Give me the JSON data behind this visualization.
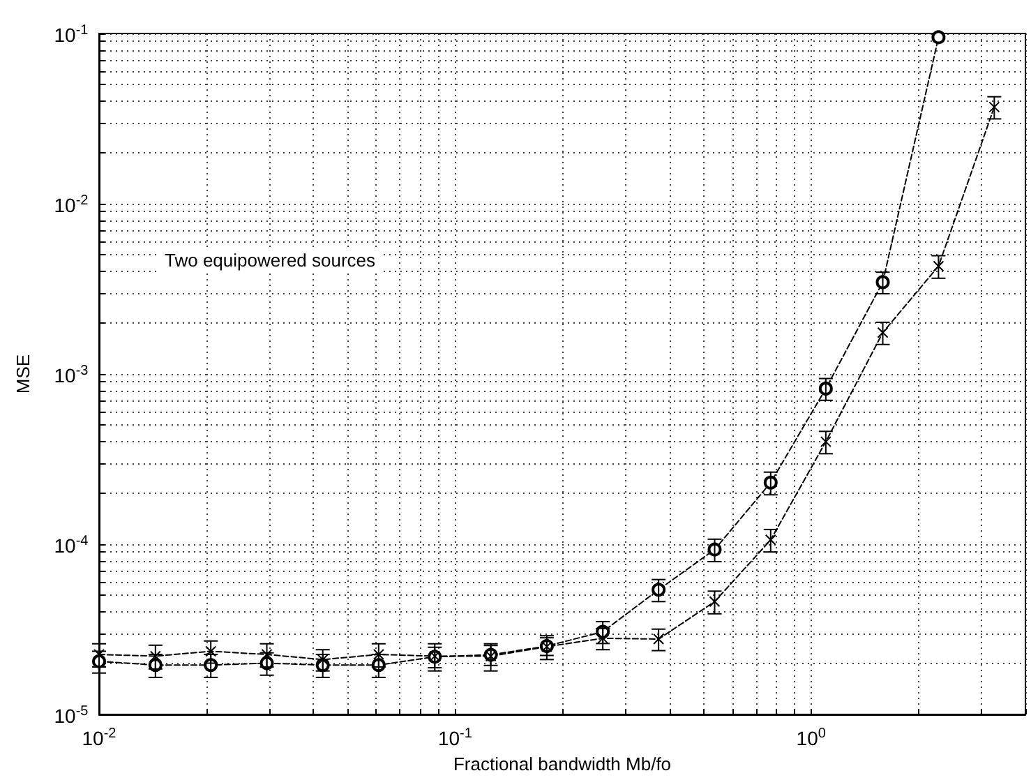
{
  "chart_data": {
    "type": "line",
    "xlabel": "Fractional bandwidth Mb/fo",
    "ylabel": "MSE",
    "annotations": [
      "Two equipowered sources"
    ],
    "log": "xy",
    "grid": true,
    "line_style": "dashed",
    "xlim": [
      0.01,
      4
    ],
    "xticks": [
      {
        "value": 0.01,
        "label": "10$^{-2}$"
      },
      {
        "value": 0.1,
        "label": "10$^{-1}$"
      },
      {
        "value": 1,
        "label": "10$^{0}$"
      }
    ],
    "ylim": [
      1e-05,
      0.1
    ],
    "yticks": [
      {
        "value": 1e-05,
        "label": "10$^{-5}$"
      },
      {
        "value": 0.0001,
        "label": "10$^{-4}$"
      },
      {
        "value": 0.001,
        "label": "10$^{-3}$"
      },
      {
        "value": 0.01,
        "label": "10$^{-2}$"
      },
      {
        "value": 0.1,
        "label": "10$^{-1}$"
      }
    ],
    "series": [
      {
        "color": "#000000",
        "marker": "circle",
        "x": [
          0.01,
          0.0144,
          0.0206,
          0.0296,
          0.0425,
          0.061,
          0.0877,
          0.126,
          0.181,
          0.26,
          0.373,
          0.536,
          0.77,
          1.1,
          1.59,
          2.28
        ],
        "values": [
          2.05e-05,
          1.95e-05,
          1.95e-05,
          2e-05,
          1.95e-05,
          1.95e-05,
          2.18e-05,
          2.24e-05,
          2.52e-05,
          3.06e-05,
          5.4e-05,
          9.3e-05,
          0.00023,
          0.00082,
          0.00346,
          0.095
        ],
        "errors": [
          3e-06,
          3e-06,
          3e-06,
          3e-06,
          3e-06,
          3e-06,
          3e-06,
          3e-06,
          3e-06,
          4.5e-06,
          8e-06,
          1.4e-05,
          3.5e-05,
          0.00012,
          0.0005,
          null
        ]
      },
      {
        "color": "#000000",
        "marker": "cross",
        "x": [
          0.01,
          0.0144,
          0.0206,
          0.0296,
          0.0425,
          0.061,
          0.0877,
          0.126,
          0.181,
          0.26,
          0.373,
          0.536,
          0.77,
          1.1,
          1.59,
          2.28,
          3.27
        ],
        "values": [
          2.25e-05,
          2.2e-05,
          2.35e-05,
          2.25e-05,
          2.1e-05,
          2.25e-05,
          2.2e-05,
          2.2e-05,
          2.5e-05,
          2.8e-05,
          2.77e-05,
          4.6e-05,
          0.000106,
          0.0004,
          0.00175,
          0.0043,
          0.037
        ],
        "errors": [
          3.5e-06,
          3.5e-06,
          3.5e-06,
          3.5e-06,
          3e-06,
          3.5e-06,
          4e-06,
          4e-06,
          4e-06,
          4e-06,
          4e-06,
          7e-06,
          1.6e-05,
          6e-05,
          0.00026,
          0.00065,
          0.0055
        ]
      }
    ]
  }
}
